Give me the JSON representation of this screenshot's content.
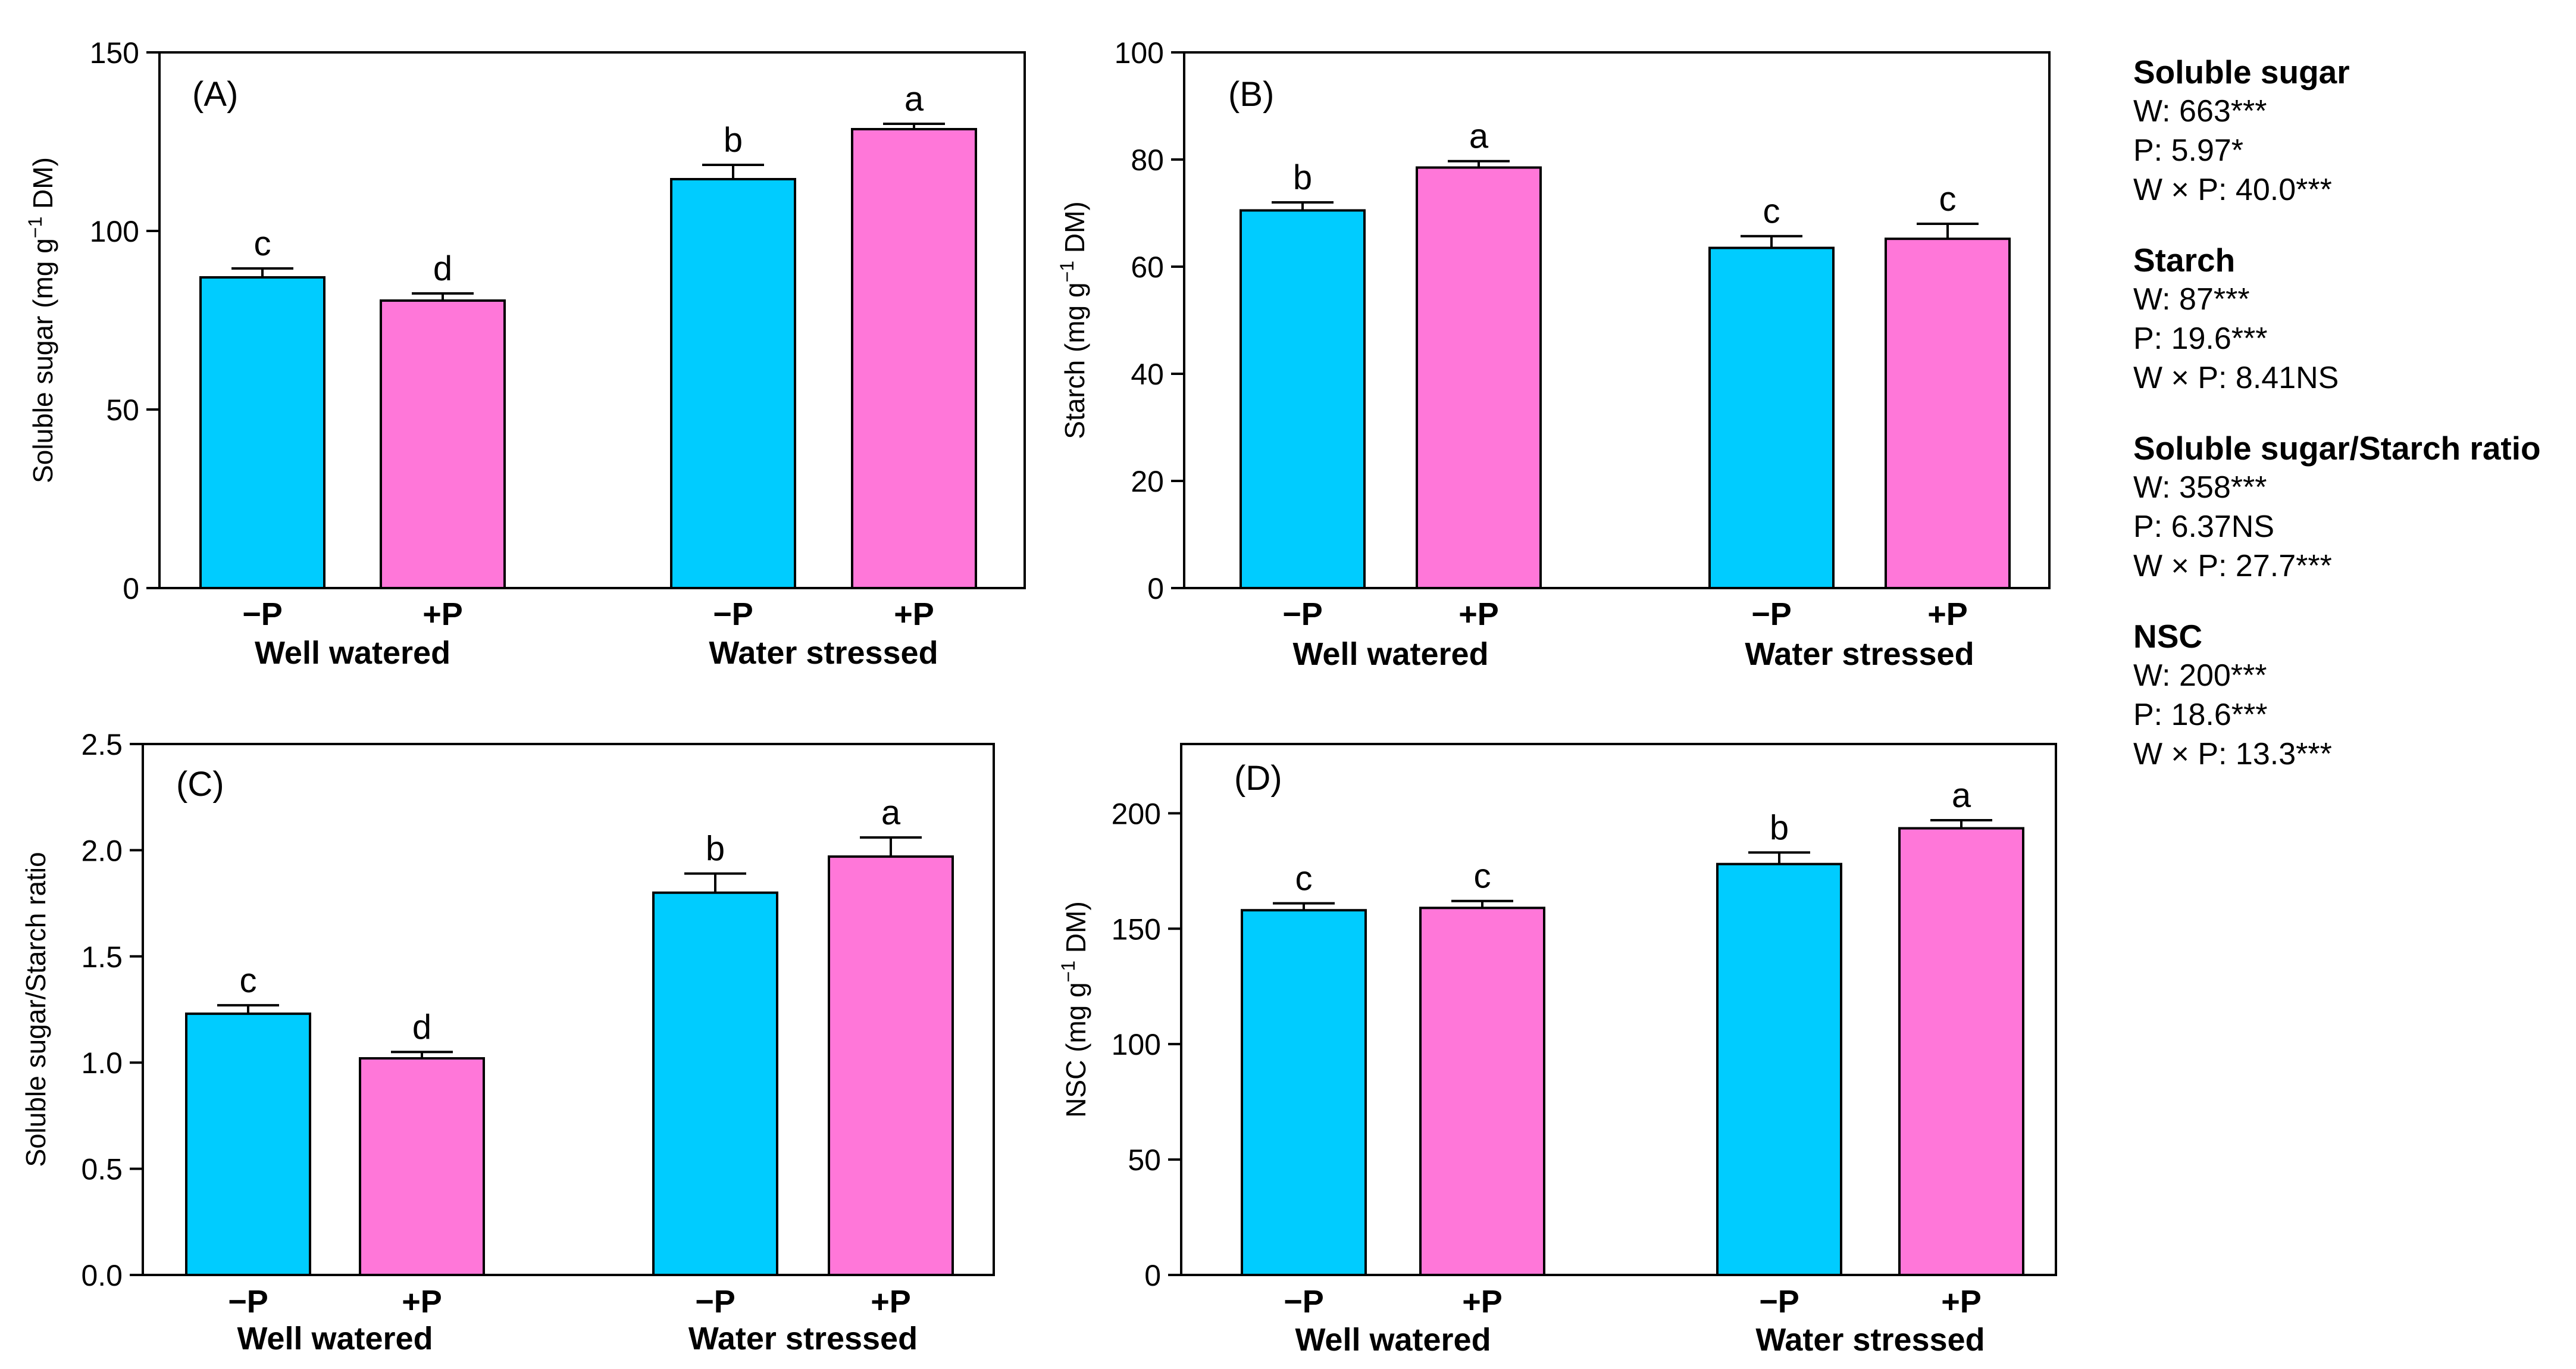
{
  "colors": {
    "minus_p": "#00ccff",
    "plus_p": "#ff77d9",
    "axis": "#000000"
  },
  "chart_data": [
    {
      "panel": "(A)",
      "type": "bar",
      "ylabel_pre": "Soluble sugar (mg g",
      "ylabel_sup": "−1",
      "ylabel_post": " DM)",
      "ylim": [
        0,
        150
      ],
      "yticks": [
        0,
        50,
        100,
        150
      ],
      "tick_labels": [
        "0",
        "50",
        "100",
        "150"
      ],
      "groups": [
        "Well watered",
        "Water stressed"
      ],
      "bars": [
        {
          "group": "Well watered",
          "treatment": "−P",
          "value": 87,
          "error": 2.5,
          "letter": "c"
        },
        {
          "group": "Well watered",
          "treatment": "+P",
          "value": 80.5,
          "error": 2,
          "letter": "d"
        },
        {
          "group": "Water stressed",
          "treatment": "−P",
          "value": 114.5,
          "error": 4,
          "letter": "b"
        },
        {
          "group": "Water stressed",
          "treatment": "+P",
          "value": 128.5,
          "error": 1.5,
          "letter": "a"
        }
      ]
    },
    {
      "panel": "(B)",
      "type": "bar",
      "ylabel_pre": "Starch (mg g",
      "ylabel_sup": "−1",
      "ylabel_post": " DM)",
      "ylim": [
        0,
        100
      ],
      "yticks": [
        0,
        20,
        40,
        60,
        80,
        100
      ],
      "tick_labels": [
        "0",
        "20",
        "40",
        "60",
        "80",
        "100"
      ],
      "groups": [
        "Well watered",
        "Water stressed"
      ],
      "bars": [
        {
          "group": "Well watered",
          "treatment": "−P",
          "value": 70.5,
          "error": 1.5,
          "letter": "b"
        },
        {
          "group": "Well watered",
          "treatment": "+P",
          "value": 78.5,
          "error": 1.2,
          "letter": "a"
        },
        {
          "group": "Water stressed",
          "treatment": "−P",
          "value": 63.5,
          "error": 2.2,
          "letter": "c"
        },
        {
          "group": "Water stressed",
          "treatment": "+P",
          "value": 65.2,
          "error": 2.8,
          "letter": "c"
        }
      ]
    },
    {
      "panel": "(C)",
      "type": "bar",
      "ylabel_pre": "Soluble sugar/Starch ratio",
      "ylabel_sup": "",
      "ylabel_post": "",
      "ylim": [
        0,
        2.5
      ],
      "yticks": [
        0,
        0.5,
        1.0,
        1.5,
        2.0,
        2.5
      ],
      "tick_labels": [
        "0.0",
        "0.5",
        "1.0",
        "1.5",
        "2.0",
        "2.5"
      ],
      "groups": [
        "Well watered",
        "Water stressed"
      ],
      "bars": [
        {
          "group": "Well watered",
          "treatment": "−P",
          "value": 1.23,
          "error": 0.04,
          "letter": "c"
        },
        {
          "group": "Well watered",
          "treatment": "+P",
          "value": 1.02,
          "error": 0.03,
          "letter": "d"
        },
        {
          "group": "Water stressed",
          "treatment": "−P",
          "value": 1.8,
          "error": 0.09,
          "letter": "b"
        },
        {
          "group": "Water stressed",
          "treatment": "+P",
          "value": 1.97,
          "error": 0.09,
          "letter": "a"
        }
      ]
    },
    {
      "panel": "(D)",
      "type": "bar",
      "ylabel_pre": "NSC (mg g",
      "ylabel_sup": "−1",
      "ylabel_post": " DM)",
      "ylim": [
        0,
        230
      ],
      "yticks": [
        0,
        50,
        100,
        150,
        200
      ],
      "tick_labels": [
        "0",
        "50",
        "100",
        "150",
        "200"
      ],
      "groups": [
        "Well watered",
        "Water stressed"
      ],
      "bars": [
        {
          "group": "Well watered",
          "treatment": "−P",
          "value": 158,
          "error": 3,
          "letter": "c"
        },
        {
          "group": "Well watered",
          "treatment": "+P",
          "value": 159,
          "error": 3,
          "letter": "c"
        },
        {
          "group": "Water stressed",
          "treatment": "−P",
          "value": 178,
          "error": 5,
          "letter": "b"
        },
        {
          "group": "Water stressed",
          "treatment": "+P",
          "value": 193.5,
          "error": 3.5,
          "letter": "a"
        }
      ]
    }
  ],
  "stats": [
    {
      "title": "Soluble sugar",
      "lines": [
        "W: 663***",
        "P: 5.97*",
        "W × P: 40.0***"
      ]
    },
    {
      "title": "Starch",
      "lines": [
        "W: 87***",
        "P: 19.6***",
        "W × P: 8.41NS"
      ]
    },
    {
      "title": "Soluble sugar/Starch ratio",
      "lines": [
        "W: 358***",
        "P: 6.37NS",
        "W × P: 27.7***"
      ]
    },
    {
      "title": "NSC",
      "lines": [
        "W: 200***",
        "P: 18.6***",
        "W × P: 13.3***"
      ]
    }
  ]
}
